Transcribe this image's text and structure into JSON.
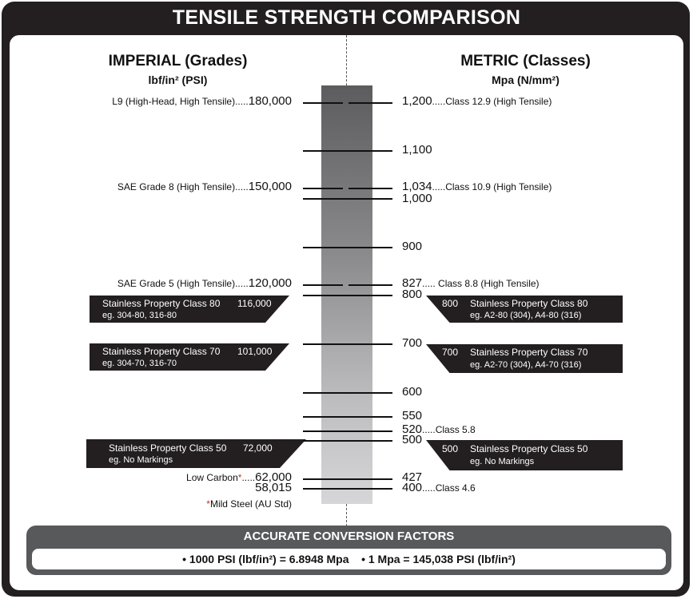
{
  "title": "TENSILE STRENGTH COMPARISON",
  "imperial": {
    "heading": "IMPERIAL (Grades)",
    "unit": "lbf/in² (PSI)",
    "grades": [
      {
        "label": "L9 (High-Head, High Tensile)",
        "dots": ".....",
        "value": "180,000"
      },
      {
        "label": "SAE Grade 8 (High Tensile)",
        "dots": ".....",
        "value": "150,000"
      },
      {
        "label": "SAE Grade 5 (High Tensile)",
        "dots": ".....",
        "value": "120,000"
      },
      {
        "label": "Low Carbon",
        "asterisk": "*",
        "dots": ".....",
        "value": "62,000"
      },
      {
        "label": "",
        "dots": "",
        "value": "58,015"
      }
    ],
    "footnote_asterisk": "*",
    "footnote": "Mild Steel (AU Std)",
    "stainless": [
      {
        "name": "Stainless Property Class 80",
        "value": "116,000",
        "example": "eg. 304-80, 316-80"
      },
      {
        "name": "Stainless Property Class 70",
        "value": "101,000",
        "example": "eg. 304-70, 316-70"
      },
      {
        "name": "Stainless Property Class 50",
        "value": "72,000",
        "example": "eg. No Markings"
      }
    ]
  },
  "metric": {
    "heading": "METRIC (Classes)",
    "unit": "Mpa (N/mm²)",
    "values": [
      {
        "value": "1,200",
        "dots": ".....",
        "label": "Class 12.9 (High Tensile)"
      },
      {
        "value": "1,100",
        "dots": "",
        "label": ""
      },
      {
        "value": "1,034",
        "dots": ".....",
        "label": "Class 10.9 (High Tensile)"
      },
      {
        "value": "1,000",
        "dots": "",
        "label": ""
      },
      {
        "value": "900",
        "dots": "",
        "label": ""
      },
      {
        "value": "827",
        "dots": ".....",
        "label": " Class 8.8 (High Tensile)"
      },
      {
        "value": "800",
        "dots": "",
        "label": ""
      },
      {
        "value": "700",
        "dots": "",
        "label": ""
      },
      {
        "value": "600",
        "dots": "",
        "label": ""
      },
      {
        "value": "550",
        "dots": "",
        "label": ""
      },
      {
        "value": "520",
        "dots": ".....",
        "label": "Class 5.8"
      },
      {
        "value": "500",
        "dots": "",
        "label": ""
      },
      {
        "value": "427",
        "dots": "",
        "label": ""
      },
      {
        "value": "400",
        "dots": ".....",
        "label": "Class 4.6"
      }
    ],
    "stainless": [
      {
        "value": "800",
        "name": "Stainless Property Class 80",
        "example": "eg. A2-80 (304), A4-80 (316)"
      },
      {
        "value": "700",
        "name": "Stainless Property Class 70",
        "example": "eg. A2-70 (304), A4-70 (316)"
      },
      {
        "value": "500",
        "name": "Stainless Property Class 50",
        "example": "eg. No Markings"
      }
    ]
  },
  "conversion": {
    "title": "ACCURATE CONVERSION FACTORS",
    "text": "• 1000 PSI (lbf/in²) = 6.8948 Mpa    • 1 Mpa = 145,038 PSI (lbf/in²)"
  },
  "colors": {
    "frame": "#231f20",
    "conversion_box": "#58595b",
    "asterisk": "#c0392b"
  }
}
